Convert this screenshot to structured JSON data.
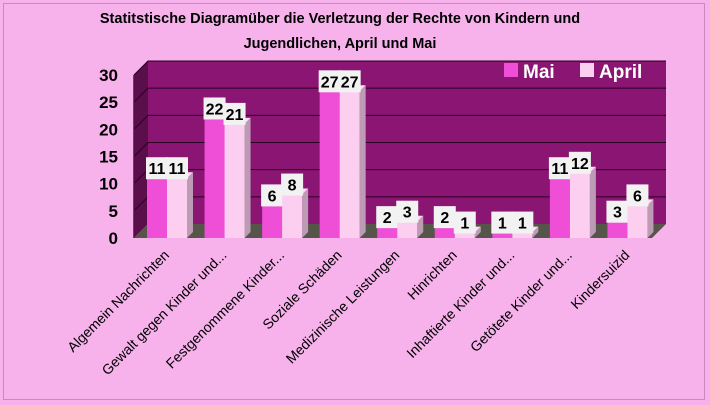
{
  "chart_data": {
    "type": "bar",
    "title_lines": [
      "Statitstische Diagramüber die Verletzung der Rechte von Kindern und",
      "Jugendlichen, April und Mai"
    ],
    "categories": [
      "Algemein Nachrichten",
      "Gewalt gegen Kinder und...",
      "Festgenommene Kinder...",
      "Soziale Schäden",
      "Medizinische Leistungen",
      "Hinrichten",
      "Inhaftierte Kinder und...",
      "Getötete Kinder und...",
      "Kindersuizid"
    ],
    "series": [
      {
        "name": "Mai",
        "values": [
          11,
          22,
          6,
          27,
          2,
          2,
          1,
          11,
          3
        ],
        "color": "#ee4fd6"
      },
      {
        "name": "April",
        "values": [
          11,
          21,
          8,
          27,
          3,
          1,
          1,
          12,
          6
        ],
        "color": "#fccff0"
      }
    ],
    "y_ticks": [
      "0",
      "5",
      "10",
      "15",
      "20",
      "25",
      "30"
    ],
    "ylim": [
      0,
      30
    ],
    "xlabel": "",
    "ylabel": "",
    "legend_position": "top-right",
    "grid": true,
    "plot_background": "#8b1572",
    "page_background": "#f7b2ec"
  }
}
